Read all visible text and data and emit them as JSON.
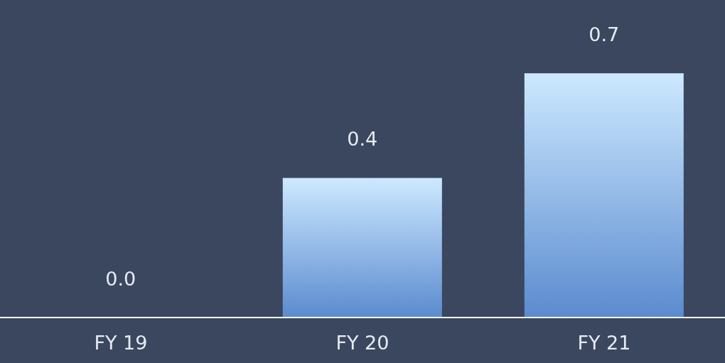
{
  "chart_data": {
    "type": "bar",
    "categories": [
      "FY 19",
      "FY 20",
      "FY 21"
    ],
    "values": [
      0.0,
      0.4,
      0.7
    ],
    "value_labels": [
      "0.0",
      "0.4",
      "0.7"
    ],
    "color": "#5b8bcf"
  }
}
